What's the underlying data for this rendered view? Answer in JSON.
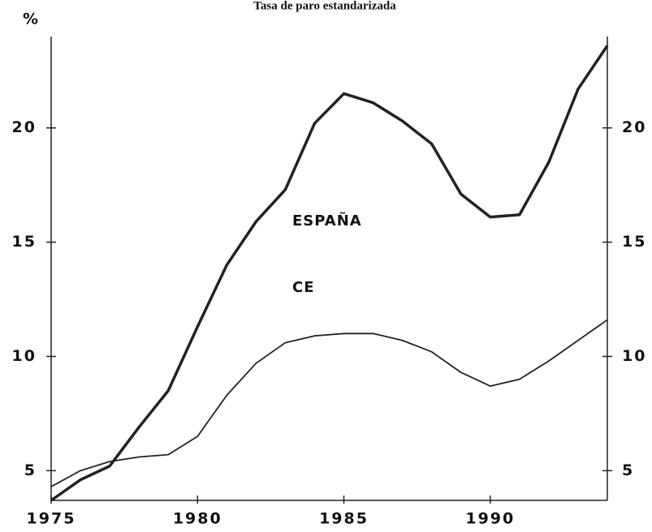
{
  "chart_data": {
    "type": "line",
    "title": "Tasa de paro estandarizada",
    "ylabel": "%",
    "x": [
      1975,
      1976,
      1977,
      1978,
      1979,
      1980,
      1981,
      1982,
      1983,
      1984,
      1985,
      1986,
      1987,
      1988,
      1989,
      1990,
      1991,
      1992,
      1993,
      1994
    ],
    "series": [
      {
        "name": "ESPAÑA",
        "color": "#222222",
        "values": [
          3.7,
          4.6,
          5.2,
          6.9,
          8.5,
          11.3,
          14.0,
          15.9,
          17.3,
          20.2,
          21.5,
          21.1,
          20.3,
          19.3,
          17.1,
          16.1,
          16.2,
          18.5,
          21.7,
          23.6
        ]
      },
      {
        "name": "CE",
        "color": "#222222",
        "values": [
          4.3,
          5.0,
          5.4,
          5.6,
          5.7,
          6.5,
          8.3,
          9.7,
          10.6,
          10.9,
          11.0,
          11.0,
          10.7,
          10.2,
          9.3,
          8.7,
          9.0,
          9.8,
          10.7,
          11.6
        ]
      }
    ],
    "xlim": [
      1975,
      1994
    ],
    "xticks": [
      1975,
      1980,
      1985,
      1990
    ],
    "ylim": [
      3.7,
      24
    ],
    "yticks": [
      5,
      10,
      15,
      20
    ],
    "y2lim": [
      3.7,
      24
    ],
    "y2ticks": [
      5,
      10,
      15,
      20
    ]
  }
}
